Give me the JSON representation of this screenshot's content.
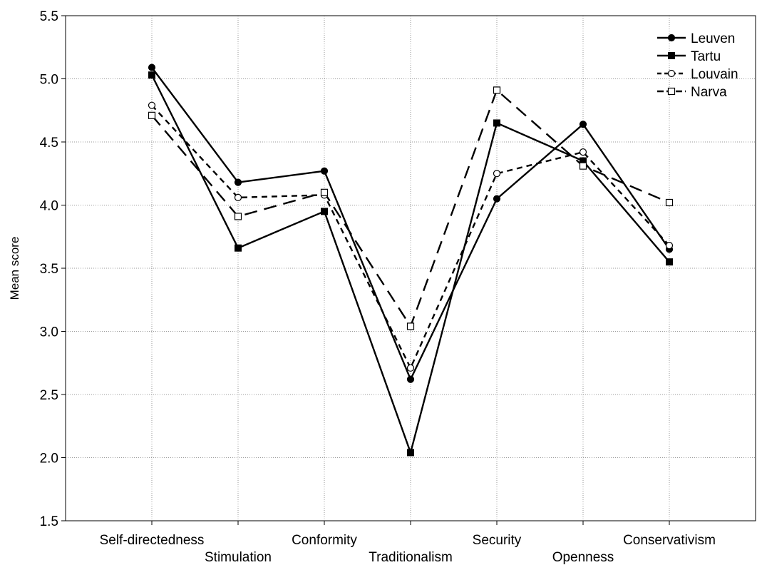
{
  "chart_data": {
    "type": "line",
    "title": "",
    "xlabel": "",
    "ylabel": "Mean score",
    "ylim": [
      1.5,
      5.5
    ],
    "yticks": [
      "1.5",
      "2.0",
      "2.5",
      "3.0",
      "3.5",
      "4.0",
      "4.5",
      "5.0",
      "5.5"
    ],
    "categories": [
      "Self-directedness",
      "Stimulation",
      "Conformity",
      "Traditionalism",
      "Security",
      "Openness",
      "Conservativism"
    ],
    "grid": true,
    "legend_position": "top-right",
    "series": [
      {
        "name": "Leuven",
        "marker": "filled-circle",
        "dash": "solid",
        "values": [
          5.09,
          4.18,
          4.27,
          2.62,
          4.05,
          4.64,
          3.65
        ]
      },
      {
        "name": "Tartu",
        "marker": "filled-square",
        "dash": "solid",
        "values": [
          5.03,
          3.66,
          3.95,
          2.04,
          4.65,
          4.35,
          3.55
        ]
      },
      {
        "name": "Louvain",
        "marker": "open-circle",
        "dash": "short-dash",
        "values": [
          4.79,
          4.06,
          4.08,
          2.71,
          4.25,
          4.42,
          3.68
        ]
      },
      {
        "name": "Narva",
        "marker": "open-square",
        "dash": "long-dash",
        "values": [
          4.71,
          3.91,
          4.1,
          3.04,
          4.91,
          4.31,
          4.02
        ]
      }
    ]
  }
}
